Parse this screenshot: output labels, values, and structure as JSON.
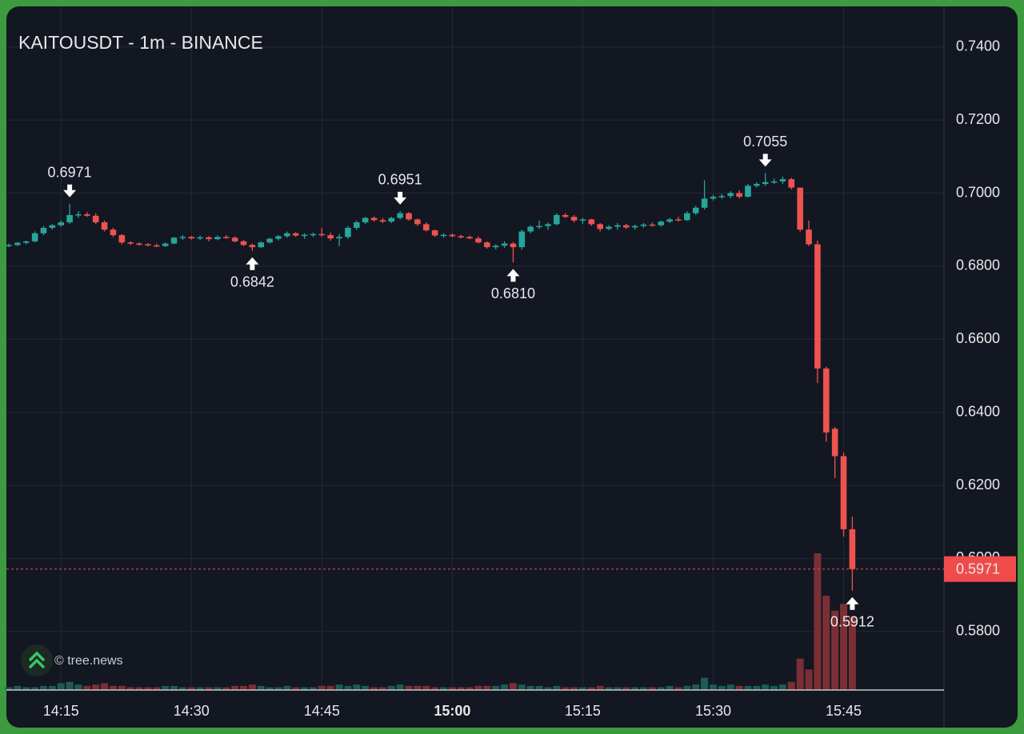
{
  "chart_data": {
    "type": "candlestick",
    "title": "KAITOUSDT - 1m - BINANCE",
    "watermark": "© tree.news",
    "up_color": "#26a69a",
    "down_color": "#ef5350",
    "up_volume_color": "#1e5a56",
    "down_volume_color": "#7a2f35",
    "grid": true,
    "ylim": [
      0.564,
      0.7511
    ],
    "yticks": [
      {
        "value": 0.74,
        "label": "0.7400"
      },
      {
        "value": 0.72,
        "label": "0.7200"
      },
      {
        "value": 0.7,
        "label": "0.7000"
      },
      {
        "value": 0.68,
        "label": "0.6800"
      },
      {
        "value": 0.66,
        "label": "0.6600"
      },
      {
        "value": 0.64,
        "label": "0.6400"
      },
      {
        "value": 0.62,
        "label": "0.6200"
      },
      {
        "value": 0.6,
        "label": "0.6000"
      },
      {
        "value": 0.58,
        "label": "0.5800"
      }
    ],
    "xticks": [
      "14:15",
      "14:30",
      "14:45",
      "15:00",
      "15:15",
      "15:30",
      "15:45"
    ],
    "emphasized_xtick": 3,
    "x": [
      "14:09",
      "14:10",
      "14:11",
      "14:12",
      "14:13",
      "14:14",
      "14:15",
      "14:16",
      "14:17",
      "14:18",
      "14:19",
      "14:20",
      "14:21",
      "14:22",
      "14:23",
      "14:24",
      "14:25",
      "14:26",
      "14:27",
      "14:28",
      "14:29",
      "14:30",
      "14:31",
      "14:32",
      "14:33",
      "14:34",
      "14:35",
      "14:36",
      "14:37",
      "14:38",
      "14:39",
      "14:40",
      "14:41",
      "14:42",
      "14:43",
      "14:44",
      "14:45",
      "14:46",
      "14:47",
      "14:48",
      "14:49",
      "14:50",
      "14:51",
      "14:52",
      "14:53",
      "14:54",
      "14:55",
      "14:56",
      "14:57",
      "14:58",
      "14:59",
      "15:00",
      "15:01",
      "15:02",
      "15:03",
      "15:04",
      "15:05",
      "15:06",
      "15:07",
      "15:08",
      "15:09",
      "15:10",
      "15:11",
      "15:12",
      "15:13",
      "15:14",
      "15:15",
      "15:16",
      "15:17",
      "15:18",
      "15:19",
      "15:20",
      "15:21",
      "15:22",
      "15:23",
      "15:24",
      "15:25",
      "15:26",
      "15:27",
      "15:28",
      "15:29",
      "15:30",
      "15:31",
      "15:32",
      "15:33",
      "15:34",
      "15:35",
      "15:36",
      "15:37",
      "15:38",
      "15:39",
      "15:40",
      "15:41",
      "15:42",
      "15:43",
      "15:44",
      "15:45",
      "15:46"
    ],
    "candles": [
      [
        0.6855,
        0.6862,
        0.6852,
        0.6858
      ],
      [
        0.6858,
        0.6866,
        0.6855,
        0.6864
      ],
      [
        0.6864,
        0.687,
        0.686,
        0.6868
      ],
      [
        0.6868,
        0.6895,
        0.6865,
        0.689
      ],
      [
        0.689,
        0.691,
        0.6885,
        0.6905
      ],
      [
        0.6905,
        0.6915,
        0.69,
        0.6912
      ],
      [
        0.6912,
        0.6925,
        0.6908,
        0.692
      ],
      [
        0.692,
        0.6971,
        0.6915,
        0.694
      ],
      [
        0.694,
        0.695,
        0.6932,
        0.6942
      ],
      [
        0.6942,
        0.6948,
        0.6935,
        0.6938
      ],
      [
        0.6938,
        0.6945,
        0.6915,
        0.692
      ],
      [
        0.692,
        0.6925,
        0.6895,
        0.69
      ],
      [
        0.69,
        0.6905,
        0.688,
        0.6885
      ],
      [
        0.6885,
        0.6888,
        0.686,
        0.6865
      ],
      [
        0.6865,
        0.6868,
        0.6858,
        0.6862
      ],
      [
        0.6862,
        0.6865,
        0.6856,
        0.686
      ],
      [
        0.686,
        0.6863,
        0.6854,
        0.6857
      ],
      [
        0.6857,
        0.6862,
        0.6852,
        0.6855
      ],
      [
        0.6855,
        0.6865,
        0.6853,
        0.6862
      ],
      [
        0.6862,
        0.688,
        0.686,
        0.6878
      ],
      [
        0.6878,
        0.6885,
        0.6872,
        0.688
      ],
      [
        0.688,
        0.6883,
        0.6873,
        0.6876
      ],
      [
        0.6876,
        0.6884,
        0.6872,
        0.6879
      ],
      [
        0.6879,
        0.6882,
        0.6868,
        0.6874
      ],
      [
        0.6874,
        0.6884,
        0.6871,
        0.688
      ],
      [
        0.688,
        0.6885,
        0.6875,
        0.6878
      ],
      [
        0.6878,
        0.6882,
        0.6865,
        0.6868
      ],
      [
        0.6868,
        0.6872,
        0.6855,
        0.6858
      ],
      [
        0.6858,
        0.6862,
        0.6842,
        0.6852
      ],
      [
        0.6852,
        0.6868,
        0.685,
        0.6865
      ],
      [
        0.6865,
        0.6878,
        0.6862,
        0.6875
      ],
      [
        0.6875,
        0.6885,
        0.687,
        0.6882
      ],
      [
        0.6882,
        0.6895,
        0.6878,
        0.689
      ],
      [
        0.689,
        0.6893,
        0.688,
        0.6884
      ],
      [
        0.6884,
        0.689,
        0.6875,
        0.6886
      ],
      [
        0.6886,
        0.6892,
        0.688,
        0.6888
      ],
      [
        0.6888,
        0.6905,
        0.688,
        0.6885
      ],
      [
        0.6885,
        0.6892,
        0.687,
        0.6876
      ],
      [
        0.6876,
        0.6888,
        0.6855,
        0.688
      ],
      [
        0.688,
        0.691,
        0.6875,
        0.6905
      ],
      [
        0.6905,
        0.6925,
        0.69,
        0.692
      ],
      [
        0.692,
        0.6935,
        0.6915,
        0.6932
      ],
      [
        0.6932,
        0.6936,
        0.6922,
        0.6926
      ],
      [
        0.6926,
        0.6932,
        0.6918,
        0.6922
      ],
      [
        0.6922,
        0.6935,
        0.6918,
        0.6932
      ],
      [
        0.6932,
        0.6951,
        0.6928,
        0.6945
      ],
      [
        0.6945,
        0.6948,
        0.6925,
        0.6928
      ],
      [
        0.6928,
        0.693,
        0.691,
        0.6915
      ],
      [
        0.6915,
        0.692,
        0.6895,
        0.6898
      ],
      [
        0.6898,
        0.69,
        0.688,
        0.6884
      ],
      [
        0.6884,
        0.689,
        0.6878,
        0.6886
      ],
      [
        0.6886,
        0.6889,
        0.6879,
        0.6882
      ],
      [
        0.6882,
        0.6886,
        0.6876,
        0.688
      ],
      [
        0.688,
        0.6884,
        0.6874,
        0.6876
      ],
      [
        0.6876,
        0.6882,
        0.6862,
        0.6865
      ],
      [
        0.6865,
        0.6868,
        0.6848,
        0.6852
      ],
      [
        0.6852,
        0.686,
        0.6846,
        0.6856
      ],
      [
        0.6856,
        0.6868,
        0.685,
        0.6862
      ],
      [
        0.6862,
        0.6866,
        0.681,
        0.6852
      ],
      [
        0.6852,
        0.69,
        0.6845,
        0.6895
      ],
      [
        0.6895,
        0.6912,
        0.689,
        0.6908
      ],
      [
        0.6908,
        0.6925,
        0.6902,
        0.691
      ],
      [
        0.691,
        0.692,
        0.69,
        0.6915
      ],
      [
        0.6915,
        0.6945,
        0.6912,
        0.694
      ],
      [
        0.694,
        0.6945,
        0.6932,
        0.6935
      ],
      [
        0.6935,
        0.694,
        0.692,
        0.6925
      ],
      [
        0.6925,
        0.6932,
        0.6915,
        0.6928
      ],
      [
        0.6928,
        0.693,
        0.691,
        0.6915
      ],
      [
        0.6915,
        0.6918,
        0.6895,
        0.6902
      ],
      [
        0.6902,
        0.6912,
        0.6898,
        0.6908
      ],
      [
        0.6908,
        0.6918,
        0.69,
        0.6912
      ],
      [
        0.6912,
        0.6916,
        0.6902,
        0.6906
      ],
      [
        0.6906,
        0.6914,
        0.69,
        0.691
      ],
      [
        0.691,
        0.6918,
        0.6905,
        0.6914
      ],
      [
        0.6914,
        0.692,
        0.6908,
        0.6912
      ],
      [
        0.6912,
        0.6925,
        0.6908,
        0.6922
      ],
      [
        0.6922,
        0.6932,
        0.6918,
        0.6928
      ],
      [
        0.6928,
        0.6935,
        0.6922,
        0.6926
      ],
      [
        0.6926,
        0.695,
        0.6924,
        0.6945
      ],
      [
        0.6945,
        0.6965,
        0.694,
        0.696
      ],
      [
        0.696,
        0.7035,
        0.6955,
        0.6985
      ],
      [
        0.6985,
        0.6995,
        0.698,
        0.699
      ],
      [
        0.699,
        0.6998,
        0.6984,
        0.6992
      ],
      [
        0.6992,
        0.7005,
        0.6986,
        0.7
      ],
      [
        0.7,
        0.7008,
        0.6985,
        0.699
      ],
      [
        0.699,
        0.7025,
        0.6988,
        0.702
      ],
      [
        0.702,
        0.703,
        0.7015,
        0.7025
      ],
      [
        0.7025,
        0.7055,
        0.702,
        0.703
      ],
      [
        0.703,
        0.704,
        0.7025,
        0.7032
      ],
      [
        0.7032,
        0.7045,
        0.7025,
        0.7038
      ],
      [
        0.7038,
        0.7042,
        0.701,
        0.7015
      ],
      [
        0.7015,
        0.7015,
        0.6895,
        0.69
      ],
      [
        0.69,
        0.6925,
        0.6855,
        0.686
      ],
      [
        0.686,
        0.687,
        0.648,
        0.652
      ],
      [
        0.652,
        0.6525,
        0.632,
        0.6345
      ],
      [
        0.6355,
        0.636,
        0.622,
        0.628
      ],
      [
        0.628,
        0.629,
        0.606,
        0.608
      ],
      [
        0.608,
        0.6115,
        0.5912,
        0.5971
      ]
    ],
    "volume": [
      2,
      3,
      2,
      2,
      3,
      3,
      5,
      6,
      4,
      3,
      4,
      5,
      3,
      3,
      2,
      2,
      2,
      2,
      3,
      3,
      2,
      2,
      2,
      2,
      2,
      2,
      3,
      3,
      4,
      3,
      2,
      2,
      3,
      2,
      2,
      2,
      3,
      3,
      4,
      3,
      4,
      3,
      2,
      2,
      3,
      4,
      3,
      3,
      3,
      2,
      2,
      2,
      2,
      2,
      3,
      3,
      3,
      4,
      5,
      4,
      3,
      3,
      2,
      3,
      2,
      2,
      2,
      2,
      3,
      2,
      2,
      2,
      2,
      2,
      2,
      2,
      3,
      2,
      3,
      4,
      9,
      4,
      3,
      4,
      3,
      3,
      3,
      4,
      3,
      4,
      6,
      23,
      15,
      100,
      69,
      58,
      63,
      54
    ],
    "volume_lim": [
      0,
      100
    ],
    "annotations": [
      {
        "x": "14:16",
        "value": 0.6971,
        "position": "above"
      },
      {
        "x": "14:37",
        "value": 0.6842,
        "position": "below"
      },
      {
        "x": "14:54",
        "value": 0.6951,
        "position": "above"
      },
      {
        "x": "15:07",
        "value": {
          "value": 0.681,
          "label": "0.6810"
        },
        "position": "below"
      },
      {
        "x": "15:36",
        "value": 0.7055,
        "position": "above"
      },
      {
        "x": "15:46",
        "value": 0.5912,
        "position": "below"
      }
    ],
    "last_price": 0.5971,
    "last_price_color": "#f04b4b"
  }
}
